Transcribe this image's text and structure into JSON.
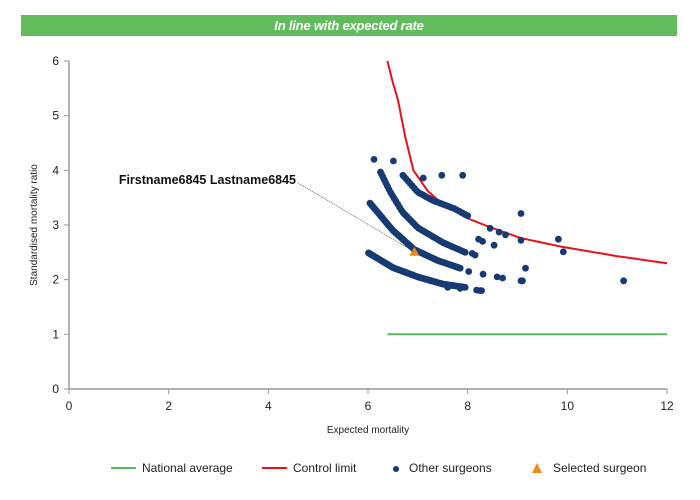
{
  "banner": {
    "text": "In line with expected rate",
    "color": "#62bb5d"
  },
  "chart_data": {
    "type": "scatter",
    "title": "",
    "xlabel": "Expected mortality",
    "ylabel": "Standardised mortality ratio",
    "xlim": [
      0,
      12
    ],
    "ylim": [
      0,
      6
    ],
    "xticks": [
      0,
      2,
      4,
      6,
      8,
      10,
      12
    ],
    "yticks": [
      0,
      1,
      2,
      3,
      4,
      5,
      6
    ],
    "grid": false,
    "legend_position": "bottom",
    "colors": {
      "national_average": "#5cb85c",
      "control_limit": "#e8111a",
      "other_surgeons": "#173a72",
      "selected_surgeon": "#f08a1c",
      "axis": "#999999"
    },
    "legend": [
      {
        "label": "National average",
        "type": "line",
        "series": "national_average"
      },
      {
        "label": "Control limit",
        "type": "line",
        "series": "control_limit"
      },
      {
        "label": "Other surgeons",
        "type": "dot",
        "series": "other_surgeons"
      },
      {
        "label": "Selected surgeon",
        "type": "triangle",
        "series": "selected_surgeon"
      }
    ],
    "series": [
      {
        "name": "National average",
        "key": "national_average",
        "type": "line",
        "points": [
          [
            6.39,
            1.0
          ],
          [
            12.0,
            1.0
          ]
        ]
      },
      {
        "name": "Control limit",
        "key": "control_limit",
        "type": "line",
        "points": [
          [
            6.39,
            6.0
          ],
          [
            6.5,
            5.6
          ],
          [
            6.6,
            5.29
          ],
          [
            6.75,
            4.6
          ],
          [
            6.91,
            4.0
          ],
          [
            7.2,
            3.62
          ],
          [
            7.5,
            3.38
          ],
          [
            8.0,
            3.12
          ],
          [
            8.45,
            2.96
          ],
          [
            9.07,
            2.76
          ],
          [
            9.9,
            2.6
          ],
          [
            11.0,
            2.43
          ],
          [
            12.0,
            2.3
          ]
        ]
      },
      {
        "name": "Other surgeons",
        "key": "other_surgeons",
        "type": "scatter",
        "bands": [
          {
            "anchors": [
              [
                6.01,
                2.49
              ],
              [
                6.5,
                2.22
              ],
              [
                7.0,
                2.05
              ],
              [
                7.5,
                1.92
              ],
              [
                7.95,
                1.86
              ]
            ],
            "count": 80
          },
          {
            "anchors": [
              [
                6.04,
                3.4
              ],
              [
                6.5,
                2.9
              ],
              [
                6.93,
                2.55
              ],
              [
                7.4,
                2.35
              ],
              [
                7.85,
                2.21
              ]
            ],
            "count": 70
          },
          {
            "anchors": [
              [
                6.25,
                3.97
              ],
              [
                6.45,
                3.6
              ],
              [
                6.69,
                3.24
              ],
              [
                7.0,
                2.95
              ],
              [
                7.5,
                2.68
              ],
              [
                7.95,
                2.5
              ]
            ],
            "count": 45
          },
          {
            "anchors": [
              [
                6.7,
                3.91
              ],
              [
                7.0,
                3.6
              ],
              [
                7.3,
                3.45
              ],
              [
                7.73,
                3.3
              ],
              [
                8.0,
                3.17
              ]
            ],
            "count": 28
          }
        ],
        "points": [
          [
            6.12,
            4.2
          ],
          [
            6.51,
            4.17
          ],
          [
            7.11,
            3.86
          ],
          [
            7.48,
            3.91
          ],
          [
            7.9,
            3.91
          ],
          [
            9.07,
            3.21
          ],
          [
            8.45,
            2.94
          ],
          [
            8.63,
            2.87
          ],
          [
            8.76,
            2.82
          ],
          [
            9.07,
            2.72
          ],
          [
            9.82,
            2.74
          ],
          [
            9.92,
            2.51
          ],
          [
            8.22,
            2.74
          ],
          [
            8.3,
            2.7
          ],
          [
            8.53,
            2.63
          ],
          [
            8.09,
            2.48
          ],
          [
            8.15,
            2.45
          ],
          [
            9.16,
            2.21
          ],
          [
            8.02,
            2.15
          ],
          [
            8.31,
            2.1
          ],
          [
            8.59,
            2.05
          ],
          [
            8.7,
            2.03
          ],
          [
            9.07,
            1.98
          ],
          [
            9.1,
            1.98
          ],
          [
            11.13,
            1.98
          ],
          [
            8.18,
            1.81
          ],
          [
            8.25,
            1.8
          ],
          [
            8.28,
            1.8
          ],
          [
            7.85,
            1.84
          ],
          [
            7.6,
            1.86
          ]
        ]
      },
      {
        "name": "Selected surgeon",
        "key": "selected_surgeon",
        "type": "scatter",
        "points": [
          [
            6.93,
            2.51
          ]
        ]
      }
    ],
    "annotations": [
      {
        "text": "Firstname6845 Lastname6845",
        "target": [
          6.93,
          2.51
        ]
      }
    ]
  }
}
